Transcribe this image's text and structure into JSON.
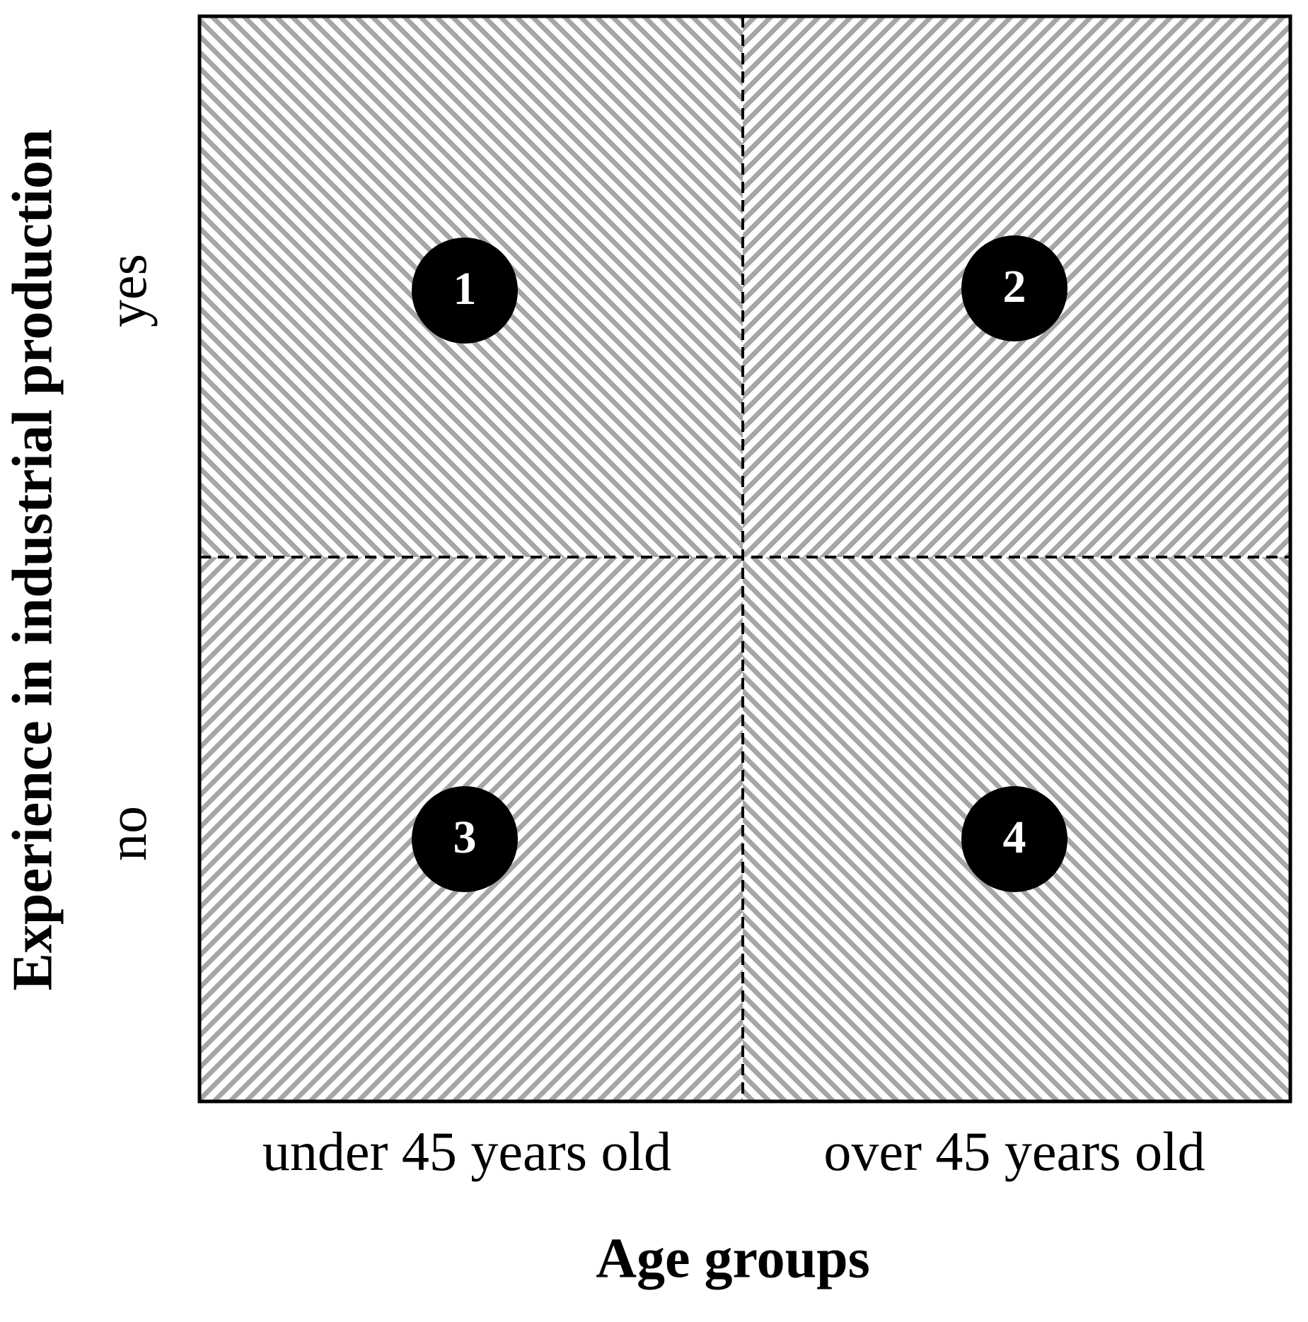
{
  "axes": {
    "x_title": "Age groups",
    "y_title": "Experience in industrial production",
    "x_categories": [
      "under 45 years old",
      "over 45 years old"
    ],
    "y_categories": [
      "yes",
      "no"
    ]
  },
  "quadrants": [
    {
      "label": "1"
    },
    {
      "label": "2"
    },
    {
      "label": "3"
    },
    {
      "label": "4"
    }
  ]
}
